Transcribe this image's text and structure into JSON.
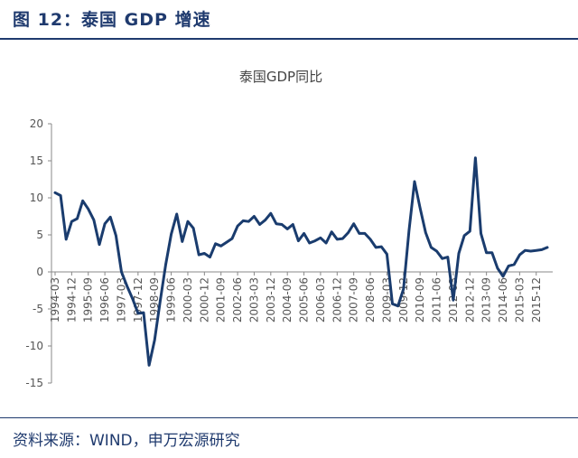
{
  "figure": {
    "header": "图 12：泰国 GDP 增速",
    "source": "资料来源：WIND，申万宏源研究"
  },
  "chart_data": {
    "type": "line",
    "title": "泰国GDP同比",
    "xlabel": "",
    "ylabel": "",
    "ylim": [
      -15,
      20
    ],
    "yticks": [
      -15,
      -10,
      -5,
      0,
      5,
      10,
      15,
      20
    ],
    "grid": false,
    "line_color": "#1a3c6e",
    "x_tick_labels": [
      "1994-03",
      "1994-12",
      "1995-09",
      "1996-06",
      "1997-03",
      "1997-12",
      "1998-09",
      "1999-06",
      "2000-03",
      "2000-12",
      "2001-09",
      "2002-06",
      "2003-03",
      "2003-12",
      "2004-09",
      "2005-06",
      "2006-03",
      "2006-12",
      "2007-09",
      "2008-06",
      "2009-03",
      "2009-12",
      "2010-09",
      "2011-06",
      "2012-03",
      "2012-12",
      "2013-09",
      "2014-06",
      "2015-03",
      "2015-12"
    ],
    "series": [
      {
        "x": [
          "1994-03",
          "1994-06",
          "1994-09",
          "1994-12",
          "1995-03",
          "1995-06",
          "1995-09",
          "1995-12",
          "1996-03",
          "1996-06",
          "1996-09",
          "1996-12",
          "1997-03",
          "1997-06",
          "1997-09",
          "1997-12",
          "1998-03",
          "1998-06",
          "1998-09",
          "1998-12",
          "1999-03",
          "1999-06",
          "1999-09",
          "1999-12",
          "2000-03",
          "2000-06",
          "2000-09",
          "2000-12",
          "2001-03",
          "2001-06",
          "2001-09",
          "2001-12",
          "2002-03",
          "2002-06",
          "2002-09",
          "2002-12",
          "2003-03",
          "2003-06",
          "2003-09",
          "2003-12",
          "2004-03",
          "2004-06",
          "2004-09",
          "2004-12",
          "2005-03",
          "2005-06",
          "2005-09",
          "2005-12",
          "2006-03",
          "2006-06",
          "2006-09",
          "2006-12",
          "2007-03",
          "2007-06",
          "2007-09",
          "2007-12",
          "2008-03",
          "2008-06",
          "2008-09",
          "2008-12",
          "2009-03",
          "2009-06",
          "2009-09",
          "2009-12",
          "2010-03",
          "2010-06",
          "2010-09",
          "2010-12",
          "2011-03",
          "2011-06",
          "2011-09",
          "2011-12",
          "2012-03",
          "2012-06",
          "2012-09",
          "2012-12",
          "2013-03",
          "2013-06",
          "2013-09",
          "2013-12",
          "2014-03",
          "2014-06",
          "2014-09",
          "2014-12",
          "2015-03",
          "2015-06",
          "2015-09",
          "2015-12",
          "2016-03",
          "2016-06"
        ],
        "values": [
          10.7,
          10.3,
          4.4,
          6.8,
          7.2,
          9.6,
          8.5,
          7.0,
          3.7,
          6.5,
          7.4,
          4.9,
          0.0,
          -1.9,
          -3.6,
          -5.6,
          -5.5,
          -12.6,
          -9.2,
          -4.0,
          1.0,
          5.1,
          7.8,
          4.1,
          6.8,
          5.9,
          2.3,
          2.5,
          2.0,
          3.8,
          3.5,
          4.0,
          4.5,
          6.2,
          6.9,
          6.8,
          7.5,
          6.4,
          7.0,
          7.9,
          6.5,
          6.4,
          5.8,
          6.4,
          4.2,
          5.2,
          3.9,
          4.2,
          4.6,
          3.9,
          5.4,
          4.4,
          4.5,
          5.3,
          6.5,
          5.2,
          5.2,
          4.4,
          3.3,
          3.4,
          2.4,
          -4.3,
          -4.6,
          -2.3,
          5.6,
          12.2,
          8.6,
          5.3,
          3.3,
          2.8,
          1.8,
          2.0,
          -3.8,
          2.5,
          4.9,
          5.5,
          15.4,
          5.2,
          2.6,
          2.6,
          0.5,
          -0.6,
          0.8,
          1.0,
          2.3,
          2.9,
          2.8,
          2.9,
          3.0,
          3.3
        ]
      }
    ]
  }
}
